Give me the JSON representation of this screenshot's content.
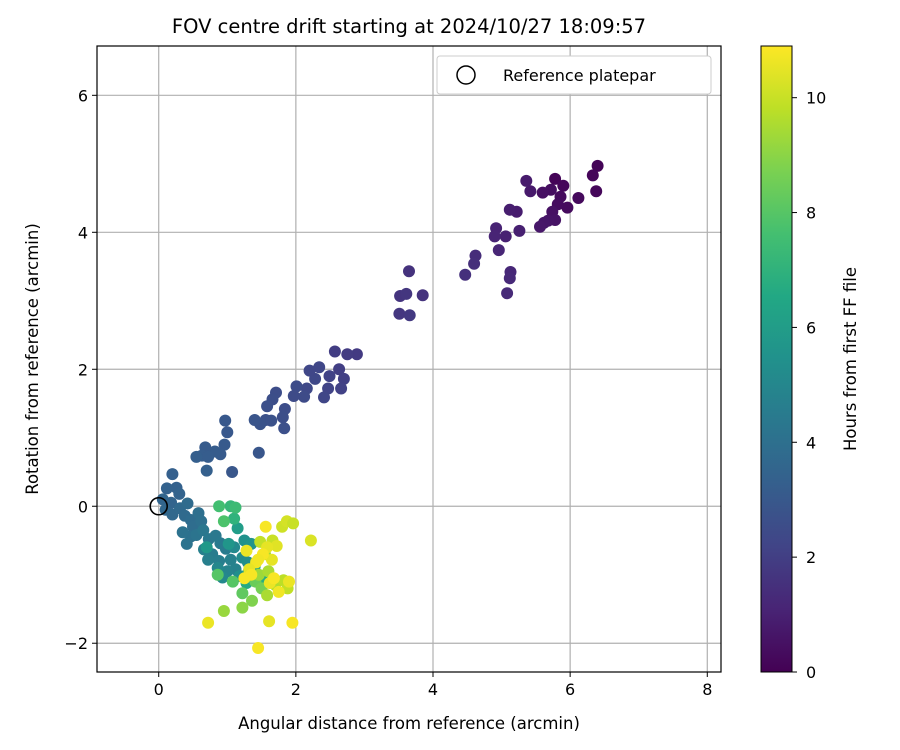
{
  "chart_data": {
    "type": "scatter",
    "title": "FOV centre drift starting at 2024/10/27 18:09:57",
    "xlabel": "Angular distance from reference (arcmin)",
    "ylabel": "Rotation from reference (arcmin)",
    "xlim": [
      -0.9,
      8.2
    ],
    "ylim": [
      -2.42,
      6.72
    ],
    "xticks": [
      0,
      2,
      4,
      6,
      8
    ],
    "yticks": [
      -2,
      0,
      2,
      4,
      6
    ],
    "grid": true,
    "legend": {
      "location": "top-right",
      "entries": [
        "Reference platepar"
      ]
    },
    "reference_point": {
      "x": 0,
      "y": 0,
      "label": "Reference platepar"
    },
    "colorbar": {
      "label": "Hours from first FF file",
      "colormap": "viridis",
      "range": [
        0,
        10.9
      ],
      "ticks": [
        0,
        2,
        4,
        6,
        8,
        10
      ]
    },
    "points": [
      [
        6.4,
        4.97,
        0.1
      ],
      [
        6.33,
        4.83,
        0.15
      ],
      [
        6.38,
        4.6,
        0.2
      ],
      [
        6.12,
        4.5,
        0.25
      ],
      [
        5.96,
        4.36,
        0.3
      ],
      [
        5.78,
        4.78,
        0.1
      ],
      [
        5.9,
        4.68,
        0.2
      ],
      [
        5.86,
        4.52,
        0.3
      ],
      [
        5.82,
        4.41,
        0.35
      ],
      [
        5.72,
        4.62,
        0.4
      ],
      [
        5.6,
        4.58,
        0.45
      ],
      [
        5.74,
        4.3,
        0.5
      ],
      [
        5.78,
        4.18,
        0.55
      ],
      [
        5.68,
        4.17,
        0.6
      ],
      [
        5.62,
        4.14,
        0.65
      ],
      [
        5.56,
        4.08,
        0.7
      ],
      [
        5.42,
        4.6,
        0.75
      ],
      [
        5.36,
        4.75,
        0.8
      ],
      [
        5.22,
        4.3,
        0.85
      ],
      [
        5.12,
        4.33,
        0.9
      ],
      [
        5.26,
        4.02,
        0.95
      ],
      [
        5.06,
        3.94,
        1.0
      ],
      [
        4.92,
        4.06,
        1.05
      ],
      [
        4.9,
        3.94,
        1.1
      ],
      [
        4.96,
        3.74,
        1.15
      ],
      [
        5.13,
        3.42,
        1.2
      ],
      [
        5.12,
        3.33,
        1.25
      ],
      [
        5.08,
        3.11,
        1.3
      ],
      [
        4.62,
        3.66,
        1.4
      ],
      [
        4.6,
        3.54,
        1.45
      ],
      [
        4.47,
        3.38,
        1.5
      ],
      [
        3.65,
        3.43,
        1.55
      ],
      [
        3.85,
        3.08,
        1.6
      ],
      [
        3.52,
        3.07,
        1.65
      ],
      [
        3.61,
        3.1,
        1.7
      ],
      [
        3.51,
        2.81,
        1.75
      ],
      [
        3.66,
        2.79,
        1.8
      ],
      [
        2.89,
        2.22,
        1.85
      ],
      [
        2.75,
        2.22,
        1.9
      ],
      [
        2.57,
        2.26,
        1.95
      ],
      [
        2.63,
        2.0,
        2.0
      ],
      [
        2.7,
        1.86,
        2.05
      ],
      [
        2.66,
        1.72,
        2.1
      ],
      [
        2.49,
        1.9,
        2.15
      ],
      [
        2.47,
        1.72,
        2.2
      ],
      [
        2.41,
        1.59,
        2.25
      ],
      [
        2.34,
        2.03,
        2.3
      ],
      [
        2.28,
        1.86,
        2.35
      ],
      [
        2.2,
        1.98,
        2.3
      ],
      [
        2.16,
        1.72,
        2.4
      ],
      [
        2.12,
        1.6,
        2.45
      ],
      [
        2.01,
        1.75,
        2.5
      ],
      [
        1.97,
        1.61,
        2.45
      ],
      [
        1.84,
        1.42,
        2.55
      ],
      [
        1.81,
        1.3,
        2.6
      ],
      [
        1.83,
        1.14,
        2.65
      ],
      [
        1.71,
        1.66,
        2.55
      ],
      [
        1.66,
        1.56,
        2.6
      ],
      [
        1.58,
        1.46,
        2.65
      ],
      [
        1.56,
        1.26,
        2.7
      ],
      [
        1.64,
        1.25,
        2.75
      ],
      [
        1.48,
        1.2,
        2.8
      ],
      [
        1.4,
        1.26,
        2.85
      ],
      [
        1.46,
        0.78,
        2.9
      ],
      [
        1.07,
        0.5,
        2.95
      ],
      [
        1.0,
        1.08,
        3.0
      ],
      [
        0.97,
        1.25,
        3.0
      ],
      [
        0.96,
        0.9,
        3.05
      ],
      [
        0.9,
        0.76,
        3.1
      ],
      [
        0.82,
        0.8,
        3.15
      ],
      [
        0.68,
        0.86,
        3.1
      ],
      [
        0.63,
        0.74,
        3.2
      ],
      [
        0.55,
        0.72,
        3.25
      ],
      [
        0.7,
        0.52,
        3.3
      ],
      [
        0.72,
        0.72,
        3.2
      ],
      [
        0.2,
        0.47,
        3.3
      ],
      [
        0.26,
        0.27,
        3.35
      ],
      [
        0.12,
        0.26,
        3.4
      ],
      [
        0.3,
        0.18,
        3.45
      ],
      [
        0.18,
        0.05,
        3.5
      ],
      [
        0.06,
        0.1,
        3.55
      ],
      [
        0.1,
        -0.05,
        3.6
      ],
      [
        0.2,
        -0.12,
        3.65
      ],
      [
        0.31,
        -0.03,
        3.7
      ],
      [
        0.38,
        -0.14,
        3.75
      ],
      [
        0.42,
        0.04,
        3.8
      ],
      [
        0.47,
        -0.2,
        3.85
      ],
      [
        0.5,
        -0.3,
        3.9
      ],
      [
        0.58,
        -0.1,
        3.95
      ],
      [
        0.62,
        -0.22,
        4.0
      ],
      [
        0.47,
        -0.44,
        4.05
      ],
      [
        0.35,
        -0.38,
        4.1
      ],
      [
        0.41,
        -0.55,
        4.15
      ],
      [
        0.55,
        -0.42,
        4.2
      ],
      [
        0.65,
        -0.35,
        4.3
      ],
      [
        0.73,
        -0.48,
        4.35
      ],
      [
        0.83,
        -0.43,
        4.4
      ],
      [
        0.9,
        -0.54,
        4.45
      ],
      [
        0.98,
        -0.62,
        4.5
      ],
      [
        0.78,
        -0.7,
        4.55
      ],
      [
        0.88,
        -0.8,
        4.6
      ],
      [
        0.72,
        -0.78,
        4.65
      ],
      [
        0.66,
        -0.63,
        4.7
      ],
      [
        1.05,
        -0.78,
        4.75
      ],
      [
        1.12,
        -0.92,
        4.8
      ],
      [
        1.0,
        -0.95,
        4.9
      ],
      [
        0.86,
        -0.9,
        5.0
      ],
      [
        0.93,
        -1.04,
        5.05
      ],
      [
        1.1,
        -0.6,
        5.1
      ],
      [
        1.22,
        -0.75,
        5.2
      ],
      [
        1.3,
        -0.82,
        5.3
      ],
      [
        1.18,
        -1.02,
        5.4
      ],
      [
        1.25,
        -0.5,
        5.5
      ],
      [
        1.35,
        -0.55,
        5.6
      ],
      [
        1.02,
        -0.55,
        5.7
      ],
      [
        0.7,
        -0.6,
        5.8
      ],
      [
        1.15,
        -0.32,
        6.0
      ],
      [
        1.3,
        -0.98,
        6.2
      ],
      [
        1.4,
        -0.88,
        6.4
      ],
      [
        1.28,
        -1.12,
        6.6
      ],
      [
        1.5,
        -1.05,
        6.8
      ],
      [
        1.1,
        -0.18,
        7.0
      ],
      [
        1.05,
        0.0,
        7.2
      ],
      [
        1.12,
        -0.02,
        7.4
      ],
      [
        0.88,
        0.0,
        7.6
      ],
      [
        0.95,
        -0.22,
        7.8
      ],
      [
        0.86,
        -1.0,
        8.0
      ],
      [
        1.08,
        -1.1,
        8.0
      ],
      [
        1.22,
        -1.27,
        8.2
      ],
      [
        1.41,
        -1.1,
        8.4
      ],
      [
        1.5,
        -1.2,
        8.6
      ],
      [
        1.36,
        -1.38,
        8.8
      ],
      [
        1.22,
        -1.48,
        9.0
      ],
      [
        0.95,
        -1.53,
        9.2
      ],
      [
        1.46,
        -1.0,
        9.3
      ],
      [
        1.55,
        -0.7,
        9.4
      ],
      [
        1.6,
        -0.95,
        9.5
      ],
      [
        1.7,
        -1.15,
        9.6
      ],
      [
        1.58,
        -1.3,
        9.5
      ],
      [
        1.82,
        -1.08,
        9.8
      ],
      [
        1.88,
        -1.2,
        9.9
      ],
      [
        1.48,
        -0.52,
        9.9
      ],
      [
        1.66,
        -0.5,
        10.0
      ],
      [
        1.8,
        -0.3,
        10.1
      ],
      [
        1.87,
        -0.22,
        10.2
      ],
      [
        1.96,
        -0.25,
        10.0
      ],
      [
        2.22,
        -0.5,
        10.3
      ],
      [
        1.72,
        -0.58,
        10.4
      ],
      [
        1.58,
        -0.6,
        10.5
      ],
      [
        1.65,
        -0.78,
        10.5
      ],
      [
        1.28,
        -0.65,
        10.6
      ],
      [
        1.42,
        -0.82,
        10.7
      ],
      [
        1.32,
        -0.92,
        10.5
      ],
      [
        1.25,
        -1.05,
        10.8
      ],
      [
        1.35,
        -1.0,
        10.8
      ],
      [
        1.62,
        -1.12,
        10.6
      ],
      [
        1.75,
        -1.25,
        10.7
      ],
      [
        1.68,
        -1.05,
        10.8
      ],
      [
        1.9,
        -1.1,
        10.6
      ],
      [
        1.52,
        -0.7,
        10.8
      ],
      [
        1.56,
        -0.3,
        10.8
      ],
      [
        1.45,
        -0.78,
        10.7
      ],
      [
        1.61,
        -1.68,
        10.5
      ],
      [
        1.95,
        -1.7,
        10.8
      ],
      [
        0.72,
        -1.7,
        10.6
      ],
      [
        1.45,
        -2.07,
        10.8
      ]
    ]
  }
}
